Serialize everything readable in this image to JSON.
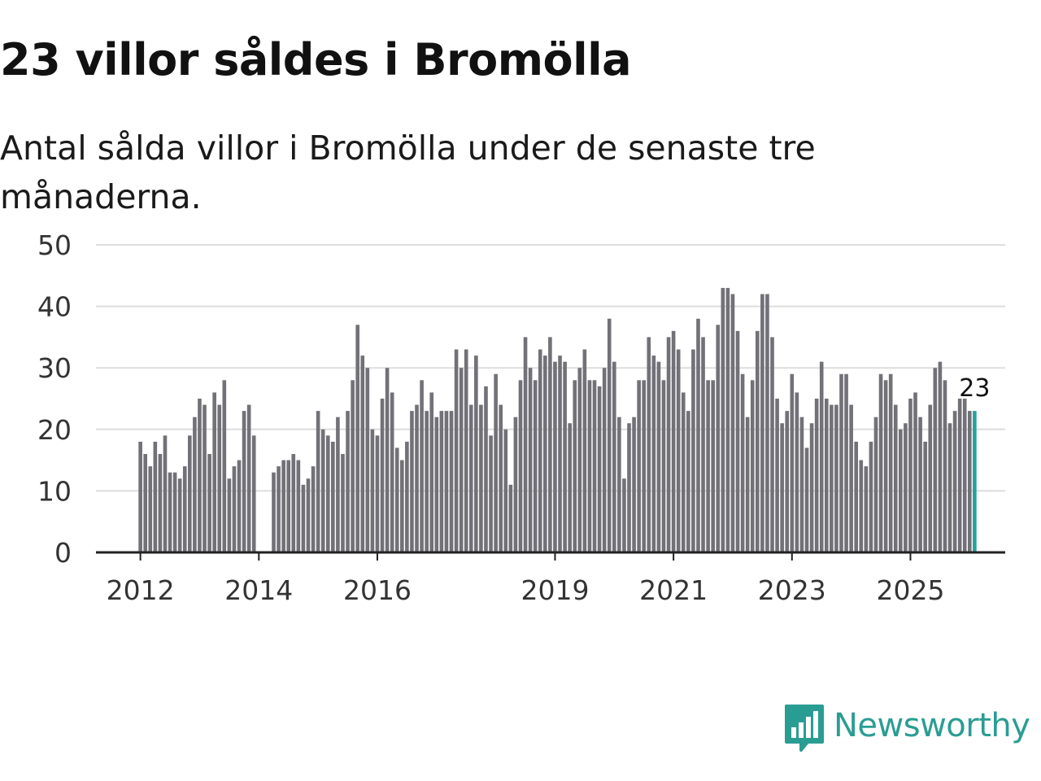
{
  "title": "23 villor såldes i Bromölla",
  "subtitle": "Antal sålda villor i Bromölla under de senaste tre månaderna.",
  "brand": {
    "name": "Newsworthy",
    "color": "#2a9d93"
  },
  "colors": {
    "bar": "#727178",
    "highlight": "#24a39b",
    "grid": "#dddddd",
    "axis": "#222222"
  },
  "chart_data": {
    "type": "bar",
    "title": "23 villor såldes i Bromölla",
    "xlabel": "",
    "ylabel": "",
    "ylim": [
      0,
      50
    ],
    "yticks": [
      0,
      10,
      20,
      30,
      40,
      50
    ],
    "grid": true,
    "x_start": {
      "year": 2011,
      "month": 4
    },
    "x_range": [
      2011.25,
      2026.6
    ],
    "xticks": [
      {
        "label": "2012",
        "value": 2012
      },
      {
        "label": "2014",
        "value": 2014
      },
      {
        "label": "2016",
        "value": 2016
      },
      {
        "label": "2019",
        "value": 2019
      },
      {
        "label": "2021",
        "value": 2021
      },
      {
        "label": "2023",
        "value": 2023
      },
      {
        "label": "2025",
        "value": 2025
      }
    ],
    "values": [
      null,
      null,
      null,
      null,
      null,
      null,
      null,
      null,
      null,
      18,
      16,
      14,
      18,
      16,
      19,
      13,
      13,
      12,
      14,
      19,
      22,
      25,
      24,
      16,
      26,
      24,
      28,
      12,
      14,
      15,
      23,
      24,
      19,
      null,
      null,
      null,
      13,
      14,
      15,
      15,
      16,
      15,
      11,
      12,
      14,
      23,
      20,
      19,
      18,
      22,
      16,
      23,
      28,
      37,
      32,
      30,
      20,
      19,
      25,
      30,
      26,
      17,
      15,
      18,
      23,
      24,
      28,
      23,
      26,
      22,
      23,
      23,
      23,
      33,
      30,
      33,
      24,
      32,
      24,
      27,
      19,
      29,
      24,
      20,
      11,
      22,
      28,
      35,
      30,
      28,
      33,
      32,
      35,
      31,
      32,
      31,
      21,
      28,
      30,
      33,
      28,
      28,
      27,
      30,
      38,
      31,
      22,
      12,
      21,
      22,
      28,
      28,
      35,
      32,
      31,
      28,
      35,
      36,
      33,
      26,
      23,
      33,
      38,
      35,
      28,
      28,
      37,
      43,
      43,
      42,
      36,
      29,
      22,
      28,
      36,
      42,
      42,
      35,
      25,
      21,
      23,
      29,
      26,
      22,
      17,
      21,
      25,
      31,
      25,
      24,
      24,
      29,
      29,
      24,
      18,
      15,
      14,
      18,
      22,
      29,
      28,
      29,
      24,
      20,
      21,
      25,
      26,
      22,
      18,
      24,
      30,
      31,
      28,
      21,
      23,
      25,
      25,
      23,
      23
    ],
    "highlight_label": "23"
  }
}
